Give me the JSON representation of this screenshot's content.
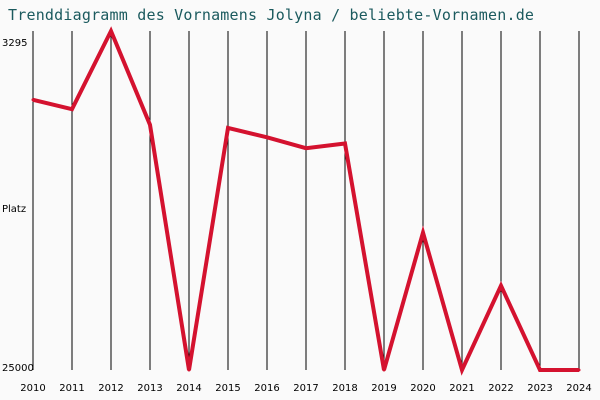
{
  "chart_data": {
    "type": "line",
    "title": "Trenddiagramm des Vornamens Jolyna / beliebte-Vornamen.de",
    "ylabel": "Platz",
    "y_axis_inverted": true,
    "ylim": [
      3295,
      25000
    ],
    "y_tick_labels": [
      "3295",
      "25000"
    ],
    "x_tick_labels": [
      "2010",
      "2011",
      "2012",
      "2013",
      "2014",
      "2015",
      "2016",
      "2017",
      "2018",
      "2019",
      "2020",
      "2021",
      "2022",
      "2023",
      "2024"
    ],
    "grid": "vertical",
    "series": [
      {
        "color": "#d4122f",
        "x": [
          2010,
          2011,
          2012,
          2013,
          2014,
          2015,
          2016,
          2017,
          2018,
          2019,
          2020,
          2021,
          2022,
          2023,
          2024
        ],
        "values": [
          7700,
          8300,
          3295,
          9300,
          25000,
          9500,
          10100,
          10800,
          10500,
          25000,
          16200,
          25000,
          19600,
          25000,
          25000
        ]
      }
    ]
  }
}
